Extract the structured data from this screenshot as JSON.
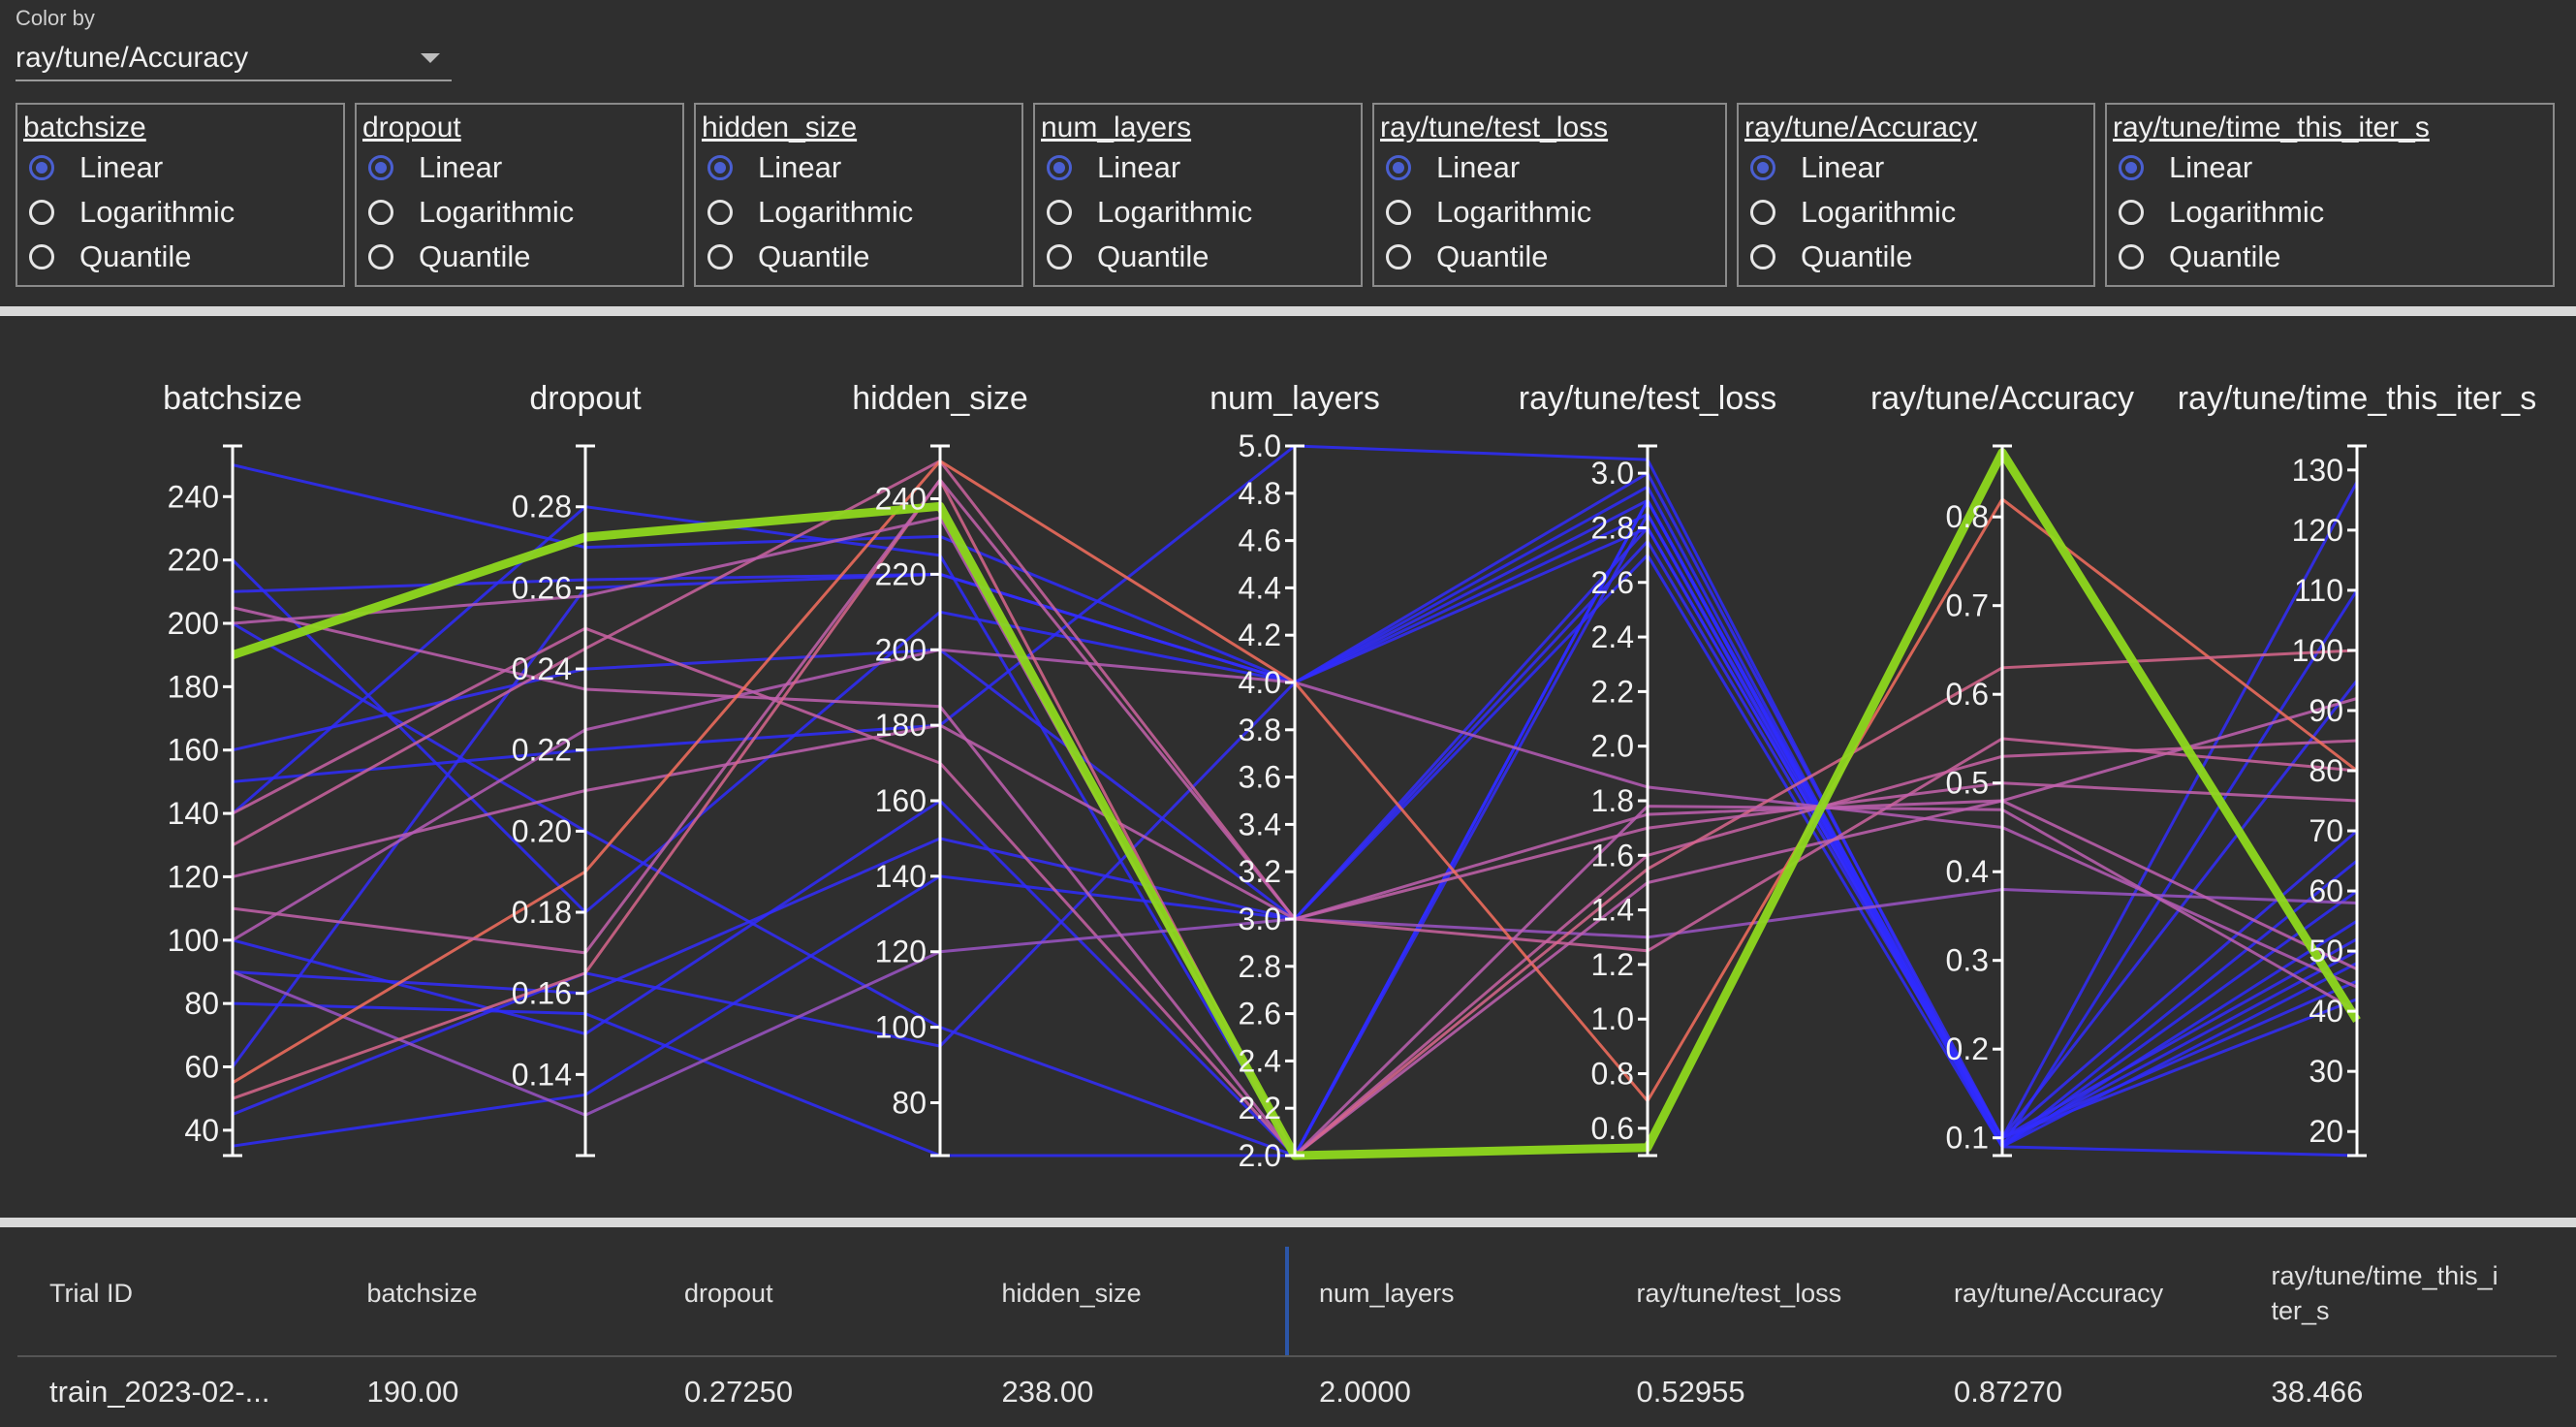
{
  "color_by": {
    "label": "Color by",
    "value": "ray/tune/Accuracy"
  },
  "scale_options": [
    "Linear",
    "Logarithmic",
    "Quantile"
  ],
  "scale_boxes": [
    {
      "title": "batchsize",
      "selected": "Linear"
    },
    {
      "title": "dropout",
      "selected": "Linear"
    },
    {
      "title": "hidden_size",
      "selected": "Linear"
    },
    {
      "title": "num_layers",
      "selected": "Linear"
    },
    {
      "title": "ray/tune/test_loss",
      "selected": "Linear"
    },
    {
      "title": "ray/tune/Accuracy",
      "selected": "Linear"
    },
    {
      "title": "ray/tune/time_this_iter_s",
      "selected": "Linear"
    }
  ],
  "chart_data": {
    "type": "parallel_coordinates",
    "axes": [
      {
        "name": "batchsize",
        "range": [
          32,
          256
        ],
        "ticks": [
          40,
          60,
          80,
          100,
          120,
          140,
          160,
          180,
          200,
          220,
          240
        ],
        "tick_labels": [
          "40",
          "60",
          "80",
          "100",
          "120",
          "140",
          "160",
          "180",
          "200",
          "220",
          "240"
        ]
      },
      {
        "name": "dropout",
        "range": [
          0.12,
          0.295
        ],
        "ticks": [
          0.14,
          0.16,
          0.18,
          0.2,
          0.22,
          0.24,
          0.26,
          0.28
        ],
        "tick_labels": [
          "0.14",
          "0.16",
          "0.18",
          "0.20",
          "0.22",
          "0.24",
          "0.26",
          "0.28"
        ]
      },
      {
        "name": "hidden_size",
        "range": [
          66,
          254
        ],
        "ticks": [
          80,
          100,
          120,
          140,
          160,
          180,
          200,
          220,
          240
        ],
        "tick_labels": [
          "80",
          "100",
          "120",
          "140",
          "160",
          "180",
          "200",
          "220",
          "240"
        ]
      },
      {
        "name": "num_layers",
        "range": [
          2.0,
          5.0
        ],
        "ticks": [
          2.0,
          2.2,
          2.4,
          2.6,
          2.8,
          3.0,
          3.2,
          3.4,
          3.6,
          3.8,
          4.0,
          4.2,
          4.4,
          4.6,
          4.8,
          5.0
        ],
        "tick_labels": [
          "2.0",
          "2.2",
          "2.4",
          "2.6",
          "2.8",
          "3.0",
          "3.2",
          "3.4",
          "3.6",
          "3.8",
          "4.0",
          "4.2",
          "4.4",
          "4.6",
          "4.8",
          "5.0"
        ]
      },
      {
        "name": "ray/tune/test_loss",
        "range": [
          0.5,
          3.1
        ],
        "ticks": [
          0.6,
          0.8,
          1.0,
          1.2,
          1.4,
          1.6,
          1.8,
          2.0,
          2.2,
          2.4,
          2.6,
          2.8,
          3.0
        ],
        "tick_labels": [
          "0.6",
          "0.8",
          "1.0",
          "1.2",
          "1.4",
          "1.6",
          "1.8",
          "2.0",
          "2.2",
          "2.4",
          "2.6",
          "2.8",
          "3.0"
        ]
      },
      {
        "name": "ray/tune/Accuracy",
        "range": [
          0.08,
          0.88
        ],
        "ticks": [
          0.1,
          0.2,
          0.3,
          0.4,
          0.5,
          0.6,
          0.7,
          0.8
        ],
        "tick_labels": [
          "0.1",
          "0.2",
          "0.3",
          "0.4",
          "0.5",
          "0.6",
          "0.7",
          "0.8"
        ]
      },
      {
        "name": "ray/tune/time_this_iter_s",
        "range": [
          16,
          134
        ],
        "ticks": [
          20,
          30,
          40,
          50,
          60,
          70,
          80,
          90,
          100,
          110,
          120,
          130
        ],
        "tick_labels": [
          "20",
          "30",
          "40",
          "50",
          "60",
          "70",
          "80",
          "90",
          "100",
          "110",
          "120",
          "130"
        ]
      }
    ],
    "color_scale": {
      "low": "#2a2aff",
      "mid": "#c060b0",
      "high": "#ff7050",
      "top": "#8ed81e"
    },
    "highlighted_trial": [
      190,
      0.2725,
      238,
      2.0,
      0.52955,
      0.8727,
      38.466
    ],
    "trials": [
      [
        190,
        0.2725,
        238,
        2.0,
        0.53,
        0.873,
        38.5
      ],
      [
        210,
        0.262,
        220,
        4.0,
        2.9,
        0.1,
        128
      ],
      [
        250,
        0.27,
        230,
        4.0,
        2.85,
        0.09,
        110
      ],
      [
        160,
        0.24,
        200,
        3.0,
        2.8,
        0.1,
        95
      ],
      [
        150,
        0.22,
        180,
        5.0,
        3.05,
        0.09,
        60
      ],
      [
        100,
        0.15,
        160,
        2.0,
        2.9,
        0.095,
        50
      ],
      [
        60,
        0.26,
        220,
        4.0,
        3.0,
        0.1,
        45
      ],
      [
        35,
        0.135,
        140,
        3.0,
        2.7,
        0.09,
        55
      ],
      [
        200,
        0.2,
        100,
        2.0,
        2.85,
        0.1,
        70
      ],
      [
        220,
        0.18,
        210,
        4.0,
        2.95,
        0.09,
        65
      ],
      [
        90,
        0.16,
        150,
        3.0,
        2.75,
        0.1,
        42
      ],
      [
        140,
        0.28,
        225,
        2.0,
        2.9,
        0.09,
        48
      ],
      [
        45,
        0.165,
        95,
        4.0,
        2.8,
        0.1,
        52
      ],
      [
        80,
        0.155,
        66,
        2.0,
        2.9,
        0.09,
        16
      ],
      [
        120,
        0.21,
        180,
        3.0,
        1.75,
        0.48,
        92
      ],
      [
        140,
        0.25,
        170,
        2.0,
        1.6,
        0.53,
        85
      ],
      [
        100,
        0.225,
        200,
        4.0,
        1.85,
        0.45,
        44
      ],
      [
        90,
        0.13,
        120,
        3.0,
        1.3,
        0.38,
        58
      ],
      [
        205,
        0.235,
        185,
        2.0,
        1.5,
        0.48,
        47
      ],
      [
        130,
        0.245,
        250,
        3.0,
        1.25,
        0.55,
        80
      ],
      [
        55,
        0.19,
        250,
        4.0,
        0.7,
        0.82,
        80
      ],
      [
        50,
        0.165,
        245,
        2.0,
        1.55,
        0.63,
        100
      ],
      [
        110,
        0.17,
        245,
        3.0,
        1.7,
        0.5,
        75
      ],
      [
        200,
        0.258,
        235,
        2.0,
        1.78,
        0.47,
        40
      ]
    ]
  },
  "table": {
    "headers": [
      "Trial ID",
      "batchsize",
      "dropout",
      "hidden_size",
      "num_layers",
      "ray/tune/test_loss",
      "ray/tune/Accuracy",
      "ray/tune/time_this_i ter_s"
    ],
    "rows": [
      [
        "train_2023-02-...",
        "190.00",
        "0.27250",
        "238.00",
        "2.0000",
        "0.52955",
        "0.87270",
        "38.466"
      ]
    ]
  }
}
